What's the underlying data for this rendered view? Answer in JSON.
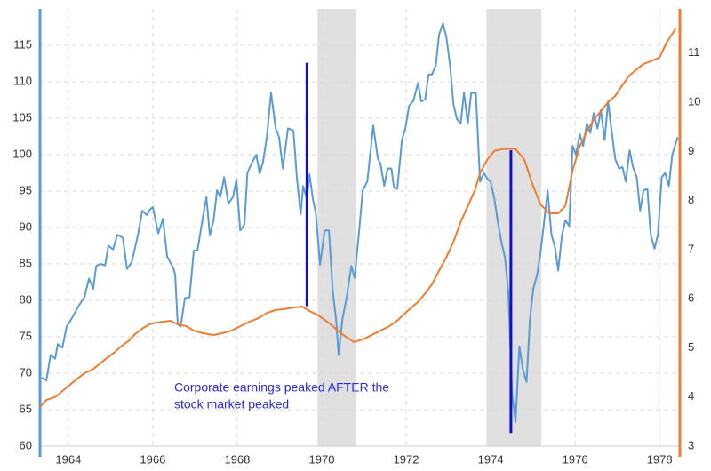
{
  "chart_data": {
    "type": "line",
    "xlim": [
      1963.33,
      1978.48
    ],
    "xticks": [
      1964,
      1966,
      1968,
      1970,
      1972,
      1974,
      1976,
      1978
    ],
    "ylim": [
      60,
      120
    ],
    "yticks": [
      60,
      65,
      70,
      75,
      80,
      85,
      90,
      95,
      100,
      105,
      110,
      115
    ],
    "y2lim": [
      3,
      11.9
    ],
    "y2ticks": [
      3,
      4,
      5,
      6,
      7,
      8,
      9,
      10,
      11
    ],
    "grid": true,
    "shaded": [
      [
        1969.9,
        1970.8
      ],
      [
        1973.9,
        1975.2
      ]
    ],
    "vlines": [
      {
        "x": 1969.65,
        "y": [
          79.2,
          112.6
        ]
      },
      {
        "x": 1974.48,
        "y": [
          61.8,
          100.6
        ]
      }
    ],
    "annotation": [
      "Corporate earnings peaked AFTER the",
      "stock market peaked"
    ],
    "annotation_color": "#2a2ad8",
    "vline_color": "#1010c8",
    "series": [
      {
        "color": "#5b9bd5",
        "axis": "y",
        "x": [
          1963.37,
          1963.48,
          1963.58,
          1963.69,
          1963.75,
          1963.86,
          1963.96,
          1964.07,
          1964.24,
          1964.38,
          1964.49,
          1964.59,
          1964.66,
          1964.76,
          1964.87,
          1964.95,
          1965.06,
          1965.16,
          1965.29,
          1965.39,
          1965.5,
          1965.65,
          1965.75,
          1965.86,
          1965.92,
          1966.0,
          1966.13,
          1966.24,
          1966.34,
          1966.49,
          1966.53,
          1966.59,
          1966.66,
          1966.76,
          1966.87,
          1966.97,
          1967.06,
          1967.18,
          1967.27,
          1967.35,
          1967.44,
          1967.52,
          1967.6,
          1967.69,
          1967.79,
          1967.9,
          1967.98,
          1968.07,
          1968.17,
          1968.24,
          1968.34,
          1968.45,
          1968.53,
          1968.61,
          1968.7,
          1968.8,
          1968.91,
          1968.99,
          1969.08,
          1969.2,
          1969.33,
          1969.41,
          1969.5,
          1969.56,
          1969.65,
          1969.71,
          1969.79,
          1969.86,
          1969.96,
          1970.07,
          1970.17,
          1970.26,
          1970.34,
          1970.4,
          1970.49,
          1970.59,
          1970.7,
          1970.78,
          1970.89,
          1970.97,
          1971.08,
          1971.22,
          1971.33,
          1971.39,
          1971.48,
          1971.56,
          1971.65,
          1971.71,
          1971.79,
          1971.9,
          1971.98,
          1972.07,
          1972.17,
          1972.28,
          1972.36,
          1972.45,
          1972.53,
          1972.61,
          1972.7,
          1972.78,
          1972.87,
          1972.95,
          1973.04,
          1973.12,
          1973.2,
          1973.29,
          1973.37,
          1973.46,
          1973.54,
          1973.65,
          1973.75,
          1973.84,
          1973.92,
          1974.0,
          1974.09,
          1974.17,
          1974.26,
          1974.34,
          1974.42,
          1974.51,
          1974.59,
          1974.68,
          1974.76,
          1974.85,
          1974.93,
          1975.01,
          1975.1,
          1975.18,
          1975.27,
          1975.35,
          1975.44,
          1975.52,
          1975.6,
          1975.69,
          1975.77,
          1975.86,
          1975.94,
          1976.02,
          1976.11,
          1976.19,
          1976.28,
          1976.36,
          1976.44,
          1976.53,
          1976.61,
          1976.7,
          1976.78,
          1976.87,
          1976.95,
          1977.04,
          1977.12,
          1977.2,
          1977.29,
          1977.37,
          1977.46,
          1977.54,
          1977.62,
          1977.71,
          1977.79,
          1977.88,
          1977.96,
          1978.05,
          1978.13,
          1978.22,
          1978.3,
          1978.43
        ],
        "values": [
          69.4,
          69,
          72.5,
          72,
          74,
          73.5,
          76.4,
          77.4,
          79.2,
          80.4,
          83,
          81.6,
          84.7,
          85,
          84.8,
          87.5,
          87,
          89,
          88.6,
          84.3,
          85.2,
          89,
          92.3,
          91.7,
          92.4,
          92.8,
          89.2,
          91.2,
          86,
          84.4,
          83.5,
          76.7,
          76.4,
          80.3,
          80.4,
          86.8,
          86.9,
          91.2,
          94.2,
          88.9,
          91,
          95.1,
          94.2,
          96.9,
          93.3,
          94.2,
          96.6,
          89.6,
          90.4,
          97.5,
          98.8,
          100,
          97.4,
          99,
          102.4,
          108.5,
          103.6,
          102.4,
          98.1,
          103.6,
          103.3,
          96.9,
          91.8,
          95.7,
          93.9,
          97.3,
          93.9,
          92,
          84.9,
          89.6,
          89.6,
          81.3,
          77.4,
          72.5,
          77.4,
          80.4,
          84.7,
          83.1,
          89.8,
          95.1,
          96.3,
          104,
          99.4,
          98.8,
          95.7,
          98.1,
          98.1,
          95.5,
          95.3,
          102,
          103.6,
          106.7,
          107.4,
          109.8,
          107.3,
          107.6,
          111,
          111,
          112.2,
          116.5,
          118,
          116.2,
          112.2,
          106.9,
          104.9,
          104.3,
          108.5,
          104.3,
          108.5,
          108.4,
          96.3,
          97.5,
          96.7,
          96.3,
          93.9,
          90.8,
          87.8,
          85.9,
          81,
          67,
          63.3,
          73.7,
          70.6,
          68.8,
          77.4,
          81.6,
          83.5,
          86.5,
          91,
          95.1,
          89,
          87.4,
          84.1,
          89,
          91,
          90.2,
          101.2,
          100,
          102.8,
          101.2,
          104.3,
          103,
          105.7,
          103.6,
          106.1,
          102,
          107.3,
          103,
          99.4,
          98.1,
          98.3,
          96.3,
          100.6,
          98.3,
          96.9,
          92.3,
          95.1,
          95.3,
          89,
          87.1,
          89,
          96.9,
          97.5,
          95.7,
          100,
          102.4
        ]
      },
      {
        "color": "#ed7d31",
        "axis": "y2",
        "x": [
          1963.33,
          1963.48,
          1963.69,
          1963.86,
          1964.07,
          1964.24,
          1964.38,
          1964.59,
          1964.74,
          1964.91,
          1965.08,
          1965.25,
          1965.44,
          1965.58,
          1965.75,
          1965.92,
          1966.13,
          1966.42,
          1966.59,
          1966.8,
          1966.97,
          1967.18,
          1967.44,
          1967.65,
          1967.86,
          1968.07,
          1968.28,
          1968.49,
          1968.7,
          1968.91,
          1969.12,
          1969.33,
          1969.54,
          1969.71,
          1969.92,
          1970.07,
          1970.21,
          1970.38,
          1970.55,
          1970.76,
          1970.97,
          1971.18,
          1971.39,
          1971.6,
          1971.81,
          1971.98,
          1972.11,
          1972.28,
          1972.45,
          1972.61,
          1972.78,
          1972.95,
          1973.12,
          1973.29,
          1973.46,
          1973.62,
          1973.75,
          1973.92,
          1974.09,
          1974.3,
          1974.59,
          1974.8,
          1974.97,
          1975.18,
          1975.39,
          1975.6,
          1975.77,
          1975.94,
          1976.11,
          1976.28,
          1976.44,
          1976.61,
          1976.78,
          1976.95,
          1977.12,
          1977.29,
          1977.46,
          1977.62,
          1977.75,
          1978.0,
          1978.17,
          1978.38
        ],
        "values": [
          3.8,
          3.94,
          4.0,
          4.12,
          4.27,
          4.39,
          4.48,
          4.57,
          4.67,
          4.79,
          4.9,
          5.03,
          5.15,
          5.28,
          5.39,
          5.48,
          5.52,
          5.55,
          5.48,
          5.44,
          5.35,
          5.3,
          5.26,
          5.3,
          5.35,
          5.44,
          5.53,
          5.6,
          5.71,
          5.77,
          5.79,
          5.82,
          5.84,
          5.75,
          5.66,
          5.57,
          5.48,
          5.35,
          5.24,
          5.12,
          5.17,
          5.26,
          5.35,
          5.44,
          5.57,
          5.71,
          5.81,
          5.93,
          6.11,
          6.29,
          6.57,
          6.84,
          7.16,
          7.56,
          7.89,
          8.19,
          8.56,
          8.83,
          9.01,
          9.05,
          9.05,
          8.83,
          8.38,
          7.92,
          7.74,
          7.74,
          7.89,
          8.61,
          9.1,
          9.41,
          9.64,
          9.82,
          10.0,
          10.13,
          10.35,
          10.55,
          10.67,
          10.78,
          10.82,
          10.91,
          11.22,
          11.5
        ]
      }
    ]
  }
}
